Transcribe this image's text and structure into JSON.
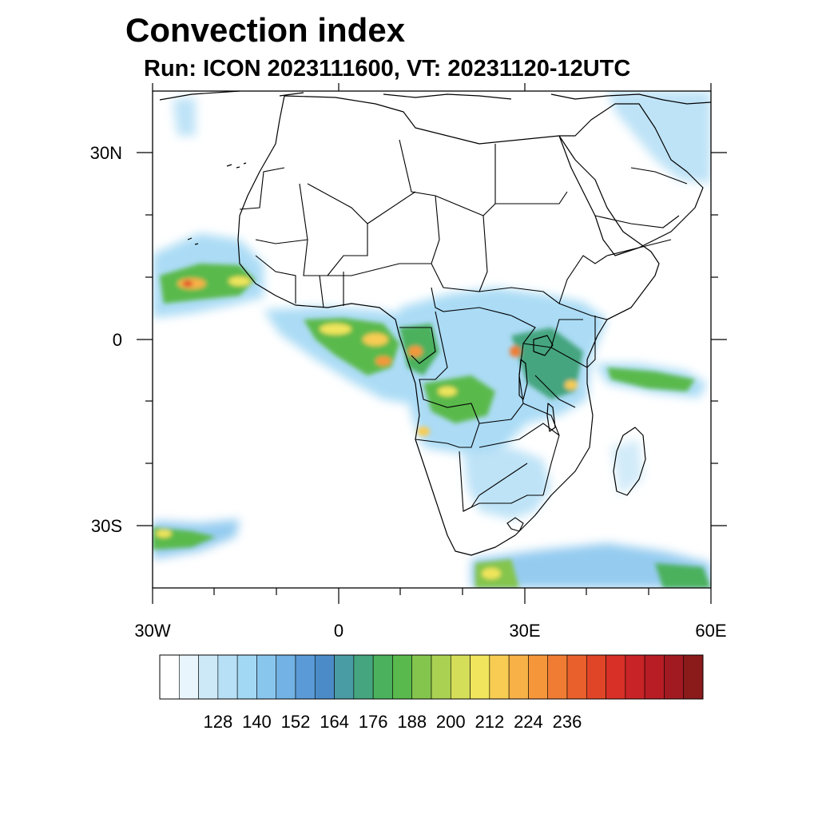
{
  "title": "Convection index",
  "subtitle": "Run: ICON 2023111600,  VT: 20231120-12UTC",
  "axes": {
    "lat_labels": [
      "30N",
      "0",
      "30S"
    ],
    "lon_labels": [
      "30W",
      "0",
      "30E",
      "60E"
    ]
  },
  "colorbar": {
    "labels": [
      "128",
      "140",
      "152",
      "164",
      "176",
      "188",
      "200",
      "212",
      "224",
      "236"
    ],
    "colors": [
      "#ffffff",
      "#e8f5fc",
      "#cde9f8",
      "#b7e0f6",
      "#a2d8f4",
      "#89c6ee",
      "#72b2e4",
      "#5a9ad6",
      "#4b8cc8",
      "#4a9ca4",
      "#45a57f",
      "#4bb15d",
      "#5ab94c",
      "#84c54d",
      "#aad151",
      "#d5de58",
      "#f0e55c",
      "#f8cc52",
      "#f7b146",
      "#f6963b",
      "#f07c33",
      "#e9602c",
      "#e04528",
      "#d83027",
      "#c82326",
      "#b81d25",
      "#a21a21",
      "#8b1a1b"
    ]
  }
}
